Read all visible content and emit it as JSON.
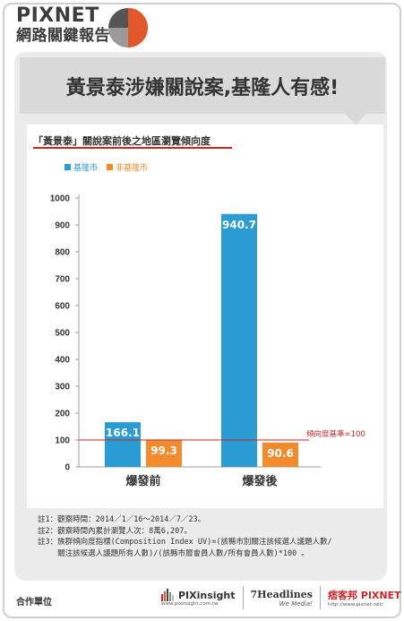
{
  "brand": {
    "name": "PIXNET",
    "subtitle": "網路關鍵報告"
  },
  "headline": "黃景泰涉嫌關說案,基隆人有感!",
  "chart_data": {
    "type": "bar",
    "title": "「黃景泰」關說案前後之地區瀏覽傾向度",
    "categories": [
      "爆發前",
      "爆發後"
    ],
    "series": [
      {
        "name": "基隆市",
        "color": "#2b9bd3",
        "values": [
          166.1,
          940.7
        ]
      },
      {
        "name": "非基隆市",
        "color": "#f28a2e",
        "values": [
          99.3,
          90.6
        ]
      }
    ],
    "value_labels": [
      [
        "166.1",
        "940.7"
      ],
      [
        "99.3",
        "90.6"
      ]
    ],
    "yticks": [
      0,
      100,
      200,
      300,
      400,
      500,
      600,
      700,
      800,
      900,
      1000
    ],
    "ylim": [
      0,
      1000
    ],
    "reference_line": {
      "value": 100,
      "label": "傾向度基準=100",
      "color": "#c62828"
    },
    "legend_position": "top-left",
    "grid": false
  },
  "notes": [
    "註1：觀察時間：2014／1／16～2014／7／23。",
    "註2：觀察時間內累計瀏覽人次：8萬6,207。",
    "註3：族群傾向度指標(Composition Index UV)=(該縣市別關注該候選人議題人數/",
    "　　 關注該候選人議題所有人數)/(該縣市層會員人數/所有會員人數)*100 。"
  ],
  "footer": {
    "label": "合作單位",
    "partners": [
      {
        "name": "PIXinsight",
        "url": "www.pixinsight.com.tw"
      },
      {
        "name": "7Headlines",
        "tagline": "We Media!"
      },
      {
        "name": "痞客邦 PIXNET",
        "url": "http://www.pixnet.net/"
      }
    ]
  }
}
